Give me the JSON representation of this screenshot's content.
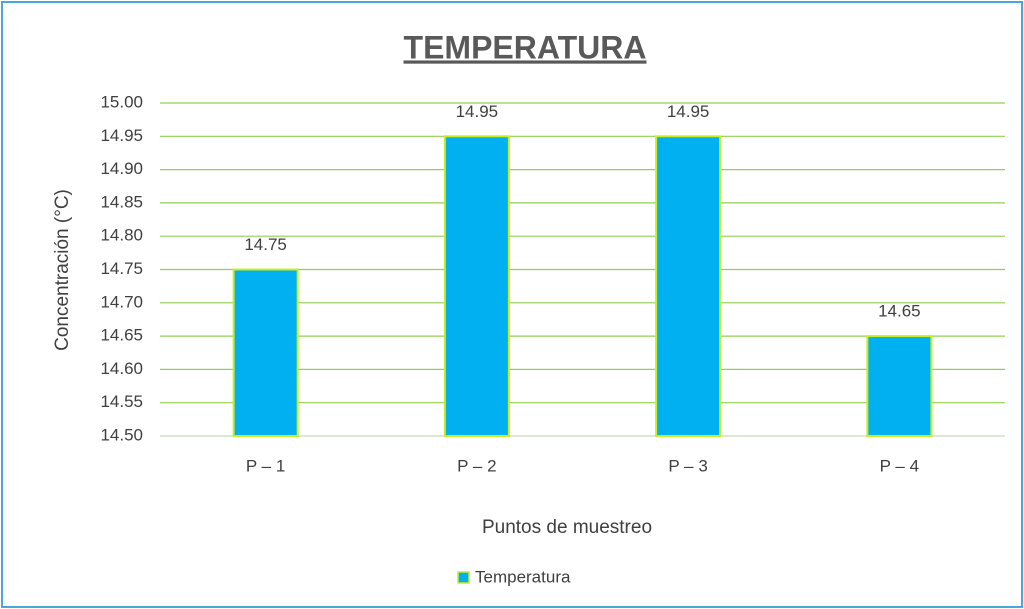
{
  "chart_data": {
    "type": "bar",
    "title": "TEMPERATURA",
    "x_label": "Puntos de muestreo",
    "y_label": "Concentración (°C)",
    "categories": [
      "P – 1",
      "P – 2",
      "P – 3",
      "P – 4"
    ],
    "series": [
      {
        "name": "Temperatura",
        "color": "#00b0f0",
        "values": [
          14.75,
          14.95,
          14.95,
          14.65
        ]
      }
    ],
    "ylim": [
      14.5,
      15
    ],
    "yticks": [
      {
        "value": 14.5,
        "label": "14.50"
      },
      14.55,
      {
        "value": 14.6,
        "label": "14.60"
      },
      14.65,
      {
        "value": 14.7,
        "label": "14.70"
      },
      14.75,
      {
        "value": 14.8,
        "label": "14.80"
      },
      14.85,
      {
        "value": 14.9,
        "label": "14.90"
      },
      14.95,
      {
        "value": 15,
        "label": "15.00"
      }
    ],
    "grid": true,
    "legend": "bottom"
  }
}
